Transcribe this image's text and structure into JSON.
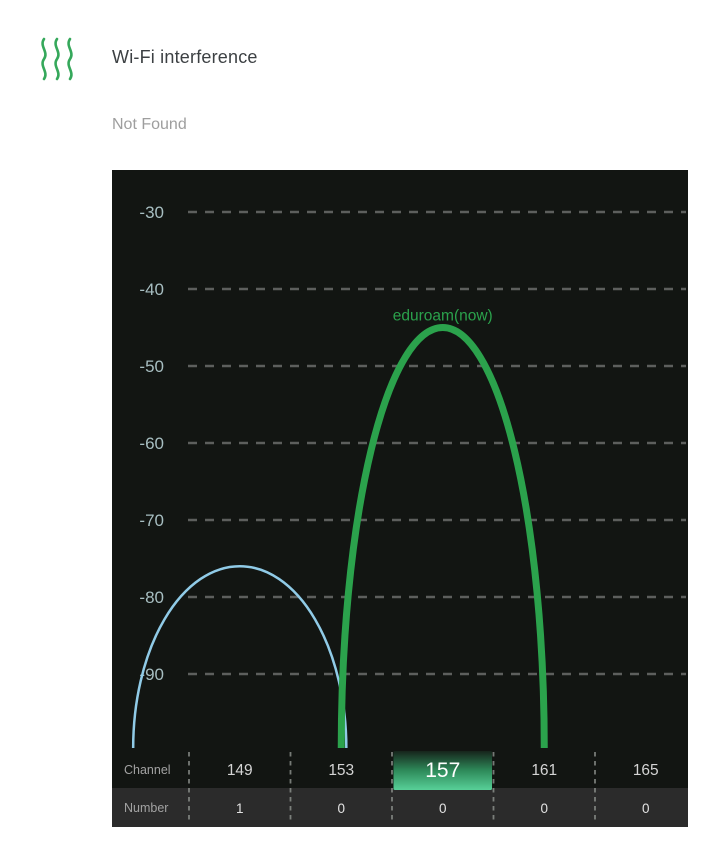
{
  "header": {
    "icon": "interference-waves-icon",
    "title": "Wi-Fi interference",
    "status": "Not Found"
  },
  "chart_data": {
    "type": "area",
    "description": "Wi-Fi channel interference spectrum (5 GHz band)",
    "y_axis": {
      "unit": "dBm",
      "tick_values": [
        -30,
        -40,
        -50,
        -60,
        -70,
        -80,
        -90
      ],
      "tick_labels": [
        "-30",
        "-40",
        "-50",
        "-60",
        "-70",
        "-80",
        "-90"
      ],
      "range": [
        -100,
        -25
      ],
      "grid": "dashed"
    },
    "x_axis": {
      "channels": [
        "149",
        "153",
        "157",
        "161",
        "165"
      ]
    },
    "rows": {
      "channel_label": "Channel",
      "number_label": "Number",
      "numbers": [
        "1",
        "0",
        "0",
        "0",
        "0"
      ]
    },
    "selected_channel": "157",
    "series": [
      {
        "name": "eduroam(now)",
        "center_channel": 157,
        "peak_dbm": -45,
        "half_width_channels": 4.0,
        "color": "#2ba24c",
        "stroke_width": 7,
        "show_label": true
      },
      {
        "name": "",
        "center_channel": 149,
        "peak_dbm": -76,
        "half_width_channels": 4.2,
        "color": "#90cbe7",
        "stroke_width": 2.5,
        "show_label": false
      }
    ],
    "colors": {
      "chart_background": "#121512",
      "number_row_background": "#2b2b2b",
      "gridline": "#5d5f5d",
      "separator": "#8f948f",
      "axis_label": "#a7bec1",
      "channel_text": "#d4d4d4",
      "selected_text": "#ffffff",
      "number_text": "#e3e3e3",
      "row_label_text": "#a2a2a2",
      "selected_cell_gradient": [
        "#16241b",
        "#2e8a5a",
        "#58d098"
      ],
      "accent_green": "#2ba24c",
      "header_icon_green": "#35a85b",
      "status_text": "#9e9e9e",
      "title_text": "#3c4043"
    }
  }
}
